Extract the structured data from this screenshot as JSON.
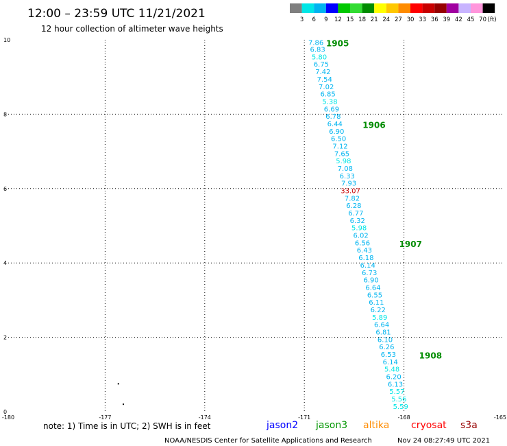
{
  "header": {
    "title": "12:00 – 23:59 UTC 11/21/2021",
    "subtitle": "12 hour collection of altimeter wave heights"
  },
  "colorbar": {
    "labels": [
      "3",
      "6",
      "9",
      "12",
      "15",
      "18",
      "21",
      "24",
      "27",
      "30",
      "33",
      "36",
      "39",
      "42",
      "45",
      "70"
    ],
    "unit": "(ft)",
    "colors": [
      "#7f7f7f",
      "#00e6e6",
      "#00b4f0",
      "#0000ff",
      "#00c800",
      "#32dc32",
      "#008c00",
      "#ffff00",
      "#ffc800",
      "#ff8c00",
      "#ff0000",
      "#c80000",
      "#960000",
      "#a000a0",
      "#c8b4ff",
      "#ff96dc",
      "#000000"
    ]
  },
  "chart_data": {
    "type": "scatter",
    "title": "12:00 – 23:59 UTC 11/21/2021",
    "subtitle": "12 hour collection of altimeter wave heights",
    "xlim": [
      -180,
      -165
    ],
    "ylim": [
      0,
      10
    ],
    "grid": true,
    "x_tick_labels": [
      "-180",
      "-177",
      "-174",
      "-171",
      "-168",
      "-165"
    ],
    "y_tick_labels": [
      "0",
      "2",
      "4",
      "6",
      "8",
      "10"
    ],
    "points": [
      {
        "lon": -170.65,
        "lat": 9.94,
        "label": "7.86",
        "color": "#00b4f0"
      },
      {
        "lon": -170.6,
        "lat": 9.75,
        "label": "6.83",
        "color": "#00b4f0"
      },
      {
        "lon": -170.55,
        "lat": 9.55,
        "label": "5.80",
        "color": "#00e6e6"
      },
      {
        "lon": -170.49,
        "lat": 9.35,
        "label": "6.75",
        "color": "#00b4f0"
      },
      {
        "lon": -170.44,
        "lat": 9.15,
        "label": "7.42",
        "color": "#00b4f0"
      },
      {
        "lon": -170.39,
        "lat": 8.95,
        "label": "7.54",
        "color": "#00b4f0"
      },
      {
        "lon": -170.34,
        "lat": 8.75,
        "label": "7.02",
        "color": "#00b4f0"
      },
      {
        "lon": -170.29,
        "lat": 8.55,
        "label": "6.85",
        "color": "#00b4f0"
      },
      {
        "lon": -170.23,
        "lat": 8.35,
        "label": "5.38",
        "color": "#00e6e6"
      },
      {
        "lon": -170.18,
        "lat": 8.15,
        "label": "6.69",
        "color": "#00b4f0"
      },
      {
        "lon": -170.13,
        "lat": 7.95,
        "label": "6.78",
        "color": "#00b4f0"
      },
      {
        "lon": -170.08,
        "lat": 7.75,
        "label": "6.44",
        "color": "#00b4f0"
      },
      {
        "lon": -170.03,
        "lat": 7.55,
        "label": "6.90",
        "color": "#00b4f0"
      },
      {
        "lon": -169.97,
        "lat": 7.35,
        "label": "6.50",
        "color": "#00b4f0"
      },
      {
        "lon": -169.92,
        "lat": 7.15,
        "label": "7.12",
        "color": "#00b4f0"
      },
      {
        "lon": -169.87,
        "lat": 6.95,
        "label": "7.65",
        "color": "#00b4f0"
      },
      {
        "lon": -169.82,
        "lat": 6.75,
        "label": "5.98",
        "color": "#00e6e6"
      },
      {
        "lon": -169.77,
        "lat": 6.55,
        "label": "7.08",
        "color": "#00b4f0"
      },
      {
        "lon": -169.71,
        "lat": 6.35,
        "label": "6.33",
        "color": "#00b4f0"
      },
      {
        "lon": -169.66,
        "lat": 6.15,
        "label": "7.93",
        "color": "#00b4f0"
      },
      {
        "lon": -169.61,
        "lat": 5.95,
        "label": "33.07",
        "color": "#c80000"
      },
      {
        "lon": -169.56,
        "lat": 5.75,
        "label": "7.82",
        "color": "#00b4f0"
      },
      {
        "lon": -169.51,
        "lat": 5.55,
        "label": "6.28",
        "color": "#00b4f0"
      },
      {
        "lon": -169.45,
        "lat": 5.35,
        "label": "6.77",
        "color": "#00b4f0"
      },
      {
        "lon": -169.4,
        "lat": 5.15,
        "label": "6.32",
        "color": "#00b4f0"
      },
      {
        "lon": -169.35,
        "lat": 4.95,
        "label": "5.98",
        "color": "#00e6e6"
      },
      {
        "lon": -169.3,
        "lat": 4.75,
        "label": "6.02",
        "color": "#00b4f0"
      },
      {
        "lon": -169.25,
        "lat": 4.55,
        "label": "6.56",
        "color": "#00b4f0"
      },
      {
        "lon": -169.19,
        "lat": 4.35,
        "label": "6.43",
        "color": "#00b4f0"
      },
      {
        "lon": -169.14,
        "lat": 4.15,
        "label": "6.18",
        "color": "#00b4f0"
      },
      {
        "lon": -169.09,
        "lat": 3.95,
        "label": "6.14",
        "color": "#00b4f0"
      },
      {
        "lon": -169.04,
        "lat": 3.75,
        "label": "6.73",
        "color": "#00b4f0"
      },
      {
        "lon": -168.99,
        "lat": 3.55,
        "label": "6.90",
        "color": "#00b4f0"
      },
      {
        "lon": -168.93,
        "lat": 3.35,
        "label": "6.64",
        "color": "#00b4f0"
      },
      {
        "lon": -168.88,
        "lat": 3.15,
        "label": "6.55",
        "color": "#00b4f0"
      },
      {
        "lon": -168.83,
        "lat": 2.95,
        "label": "6.11",
        "color": "#00b4f0"
      },
      {
        "lon": -168.78,
        "lat": 2.75,
        "label": "6.22",
        "color": "#00b4f0"
      },
      {
        "lon": -168.73,
        "lat": 2.55,
        "label": "5.89",
        "color": "#00e6e6"
      },
      {
        "lon": -168.67,
        "lat": 2.35,
        "label": "6.64",
        "color": "#00b4f0"
      },
      {
        "lon": -168.62,
        "lat": 2.15,
        "label": "6.81",
        "color": "#00b4f0"
      },
      {
        "lon": -168.57,
        "lat": 1.95,
        "label": "6.10",
        "color": "#00b4f0"
      },
      {
        "lon": -168.52,
        "lat": 1.75,
        "label": "6.26",
        "color": "#00b4f0"
      },
      {
        "lon": -168.47,
        "lat": 1.55,
        "label": "6.53",
        "color": "#00b4f0"
      },
      {
        "lon": -168.41,
        "lat": 1.35,
        "label": "6.14",
        "color": "#00b4f0"
      },
      {
        "lon": -168.36,
        "lat": 1.15,
        "label": "5.48",
        "color": "#00e6e6"
      },
      {
        "lon": -168.31,
        "lat": 0.95,
        "label": "6.20",
        "color": "#00b4f0"
      },
      {
        "lon": -168.26,
        "lat": 0.75,
        "label": "6.13",
        "color": "#00b4f0"
      },
      {
        "lon": -168.21,
        "lat": 0.55,
        "label": "5.57",
        "color": "#00e6e6"
      },
      {
        "lon": -168.15,
        "lat": 0.35,
        "label": "5.56",
        "color": "#00e6e6"
      },
      {
        "lon": -168.1,
        "lat": 0.15,
        "label": "5.59",
        "color": "#00e6e6"
      }
    ],
    "pass_times": [
      {
        "lon": -170.0,
        "lat": 9.9,
        "label": "1905"
      },
      {
        "lon": -168.9,
        "lat": 7.7,
        "label": "1906"
      },
      {
        "lon": -167.8,
        "lat": 4.5,
        "label": "1907"
      },
      {
        "lon": -167.2,
        "lat": 1.5,
        "label": "1908"
      }
    ],
    "dots": [
      {
        "lon": -176.6,
        "lat": 0.75
      },
      {
        "lon": -176.45,
        "lat": 0.2
      }
    ]
  },
  "footer": {
    "note": "note:  1) Time is in UTC;  2) SWH is in feet",
    "satellites": [
      {
        "name": "jason2",
        "color": "#0000ff"
      },
      {
        "name": "jason3",
        "color": "#009600"
      },
      {
        "name": "altika",
        "color": "#ff8c00"
      },
      {
        "name": "cryosat",
        "color": "#ff0000"
      },
      {
        "name": "s3a",
        "color": "#960000"
      }
    ],
    "credit": "NOAA/NESDIS Center for Satellite Applications and Research",
    "timestamp": "Nov 24 08:27:49 UTC 2021"
  }
}
